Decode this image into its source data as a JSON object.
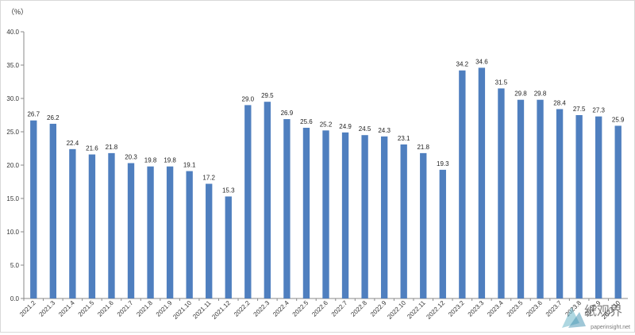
{
  "chart_data": {
    "type": "bar",
    "title": "",
    "xlabel": "",
    "ylabel": "",
    "unit_label": "（%）",
    "ylim": [
      0,
      40
    ],
    "yticks": [
      "0.0",
      "5.0",
      "10.0",
      "15.0",
      "20.0",
      "25.0",
      "30.0",
      "35.0",
      "40.0"
    ],
    "grid": false,
    "bar_color": "#4f7fbf",
    "categories": [
      "2021.2",
      "2021.3",
      "2021.4",
      "2021.5",
      "2021.6",
      "2021.7",
      "2021.8",
      "2021.9",
      "2021.10",
      "2021.11",
      "2021.12",
      "2022.2",
      "2022.3",
      "2022.4",
      "2022.5",
      "2022.6",
      "2022.7",
      "2022.8",
      "2022.9",
      "2022.10",
      "2022.11",
      "2022.12",
      "2023.2",
      "2023.3",
      "2023.4",
      "2023.5",
      "2023.6",
      "2023.7",
      "2023.8",
      "2023.9",
      "2023.10"
    ],
    "values": [
      26.7,
      26.2,
      22.4,
      21.6,
      21.8,
      20.3,
      19.8,
      19.8,
      19.1,
      17.2,
      15.3,
      29.0,
      29.5,
      26.9,
      25.6,
      25.2,
      24.9,
      24.5,
      24.3,
      23.1,
      21.8,
      19.3,
      34.2,
      34.6,
      31.5,
      29.8,
      29.8,
      28.4,
      27.5,
      27.3,
      25.9
    ],
    "value_labels": [
      "26.7",
      "26.2",
      "22.4",
      "21.6",
      "21.8",
      "20.3",
      "19.8",
      "19.8",
      "19.1",
      "17.2",
      "15.3",
      "29.0",
      "29.5",
      "26.9",
      "25.6",
      "25.2",
      "24.9",
      "24.5",
      "24.3",
      "23.1",
      "21.8",
      "19.3",
      "34.2",
      "34.6",
      "31.5",
      "29.8",
      "29.8",
      "28.4",
      "27.5",
      "27.3",
      "25.9"
    ]
  },
  "watermark": {
    "url": "paperinsight.net",
    "logo_text": "纸观界"
  }
}
